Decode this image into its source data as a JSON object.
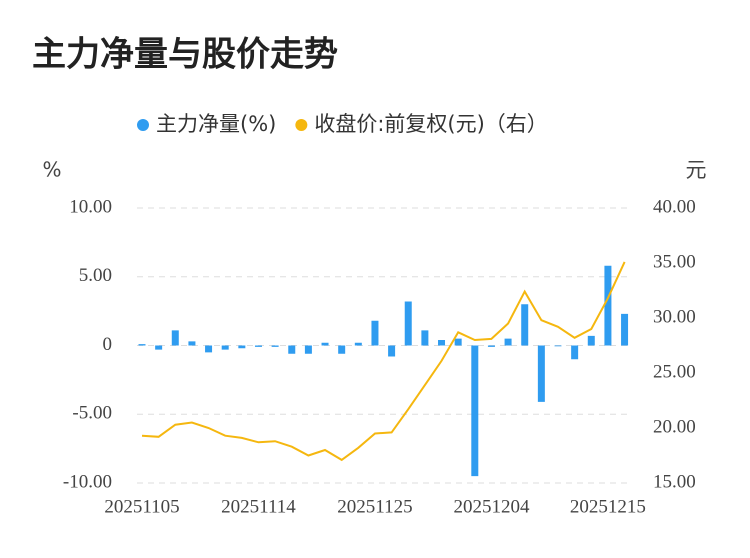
{
  "chart_data": {
    "type": "bar-line",
    "title": "主力净量与股价走势",
    "y_label": "%",
    "y2_label": "元",
    "categories": [
      "20251105",
      null,
      null,
      null,
      null,
      null,
      null,
      "20251114",
      null,
      null,
      null,
      null,
      null,
      null,
      "20251125",
      null,
      null,
      null,
      null,
      null,
      null,
      "20251204",
      null,
      null,
      null,
      null,
      null,
      null,
      "20251215",
      null
    ],
    "series": [
      {
        "name": "主力净量(%)",
        "color": "#2f9cf0",
        "kind": "bar",
        "values": [
          0.1,
          -0.3,
          1.1,
          0.3,
          -0.5,
          -0.3,
          -0.2,
          -0.1,
          -0.1,
          -0.6,
          -0.6,
          0.2,
          -0.6,
          0.2,
          1.8,
          -0.8,
          3.2,
          1.1,
          0.4,
          0.5,
          -9.5,
          -0.1,
          0.5,
          3.0,
          -4.1,
          0,
          -1.0,
          0.7,
          5.8,
          2.3
        ]
      },
      {
        "name": "收盘价:前复权(元)（右）",
        "color": "#f5b70f",
        "kind": "line",
        "axis": "y2",
        "values": [
          19.3,
          19.2,
          20.3,
          20.5,
          20.0,
          19.3,
          19.1,
          18.7,
          18.8,
          18.3,
          17.5,
          18.0,
          17.1,
          18.2,
          19.5,
          19.6,
          21.7,
          23.9,
          26.1,
          28.7,
          28.0,
          28.1,
          29.5,
          32.4,
          29.8,
          29.2,
          28.2,
          29.0,
          31.8,
          35.1
        ]
      }
    ],
    "ylim": [
      -10,
      10
    ],
    "yticks": [
      {
        "value": -10,
        "label": "-10.00"
      },
      {
        "value": -5,
        "label": "-5.00"
      },
      0,
      {
        "value": 5,
        "label": "5.00"
      },
      {
        "value": 10,
        "label": "10.00"
      }
    ],
    "y2lim": [
      15,
      40
    ],
    "y2ticks": [
      {
        "value": 15,
        "label": "15.00"
      },
      {
        "value": 20,
        "label": "20.00"
      },
      {
        "value": 25,
        "label": "25.00"
      },
      {
        "value": 30,
        "label": "30.00"
      },
      {
        "value": 35,
        "label": "35.00"
      },
      {
        "value": 40,
        "label": "40.00"
      }
    ],
    "grid": true
  }
}
